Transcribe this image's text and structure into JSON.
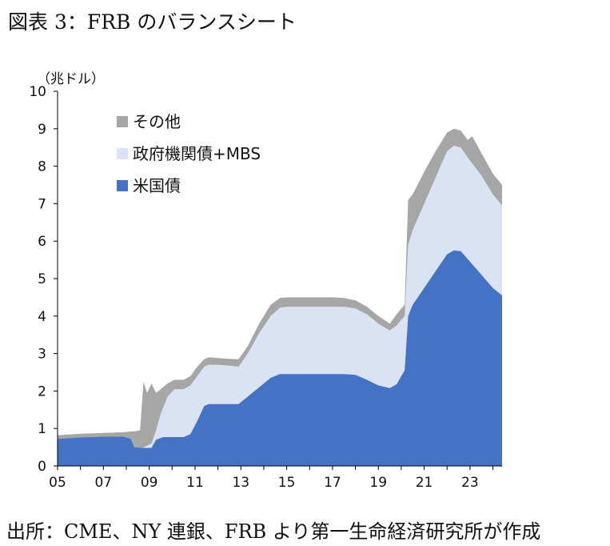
{
  "title": "図表 3：FRB のバランスシート",
  "source": "出所：CME、NY 連銀、FRB より第一生命経済研究所が作成",
  "chart_data": {
    "type": "area",
    "stacked": true,
    "unit_label": "（兆ドル）",
    "ylim": [
      0,
      10
    ],
    "yticks": [
      "0",
      "1",
      "2",
      "3",
      "4",
      "5",
      "6",
      "7",
      "8",
      "9",
      "10"
    ],
    "xlim": [
      2005,
      2024.4
    ],
    "xtick_labels": [
      "05",
      "07",
      "09",
      "11",
      "13",
      "15",
      "17",
      "19",
      "21",
      "23"
    ],
    "xtick_values": [
      2005,
      2007,
      2009,
      2011,
      2013,
      2015,
      2017,
      2019,
      2021,
      2023
    ],
    "legend_position": "top-left",
    "series": [
      {
        "name": "米国債",
        "color": "#4472c4",
        "points": [
          [
            2005.0,
            0.72
          ],
          [
            2006.0,
            0.76
          ],
          [
            2007.0,
            0.78
          ],
          [
            2007.9,
            0.78
          ],
          [
            2008.2,
            0.72
          ],
          [
            2008.35,
            0.5
          ],
          [
            2008.7,
            0.48
          ],
          [
            2009.1,
            0.48
          ],
          [
            2009.3,
            0.7
          ],
          [
            2009.6,
            0.77
          ],
          [
            2010.0,
            0.77
          ],
          [
            2010.5,
            0.77
          ],
          [
            2010.8,
            0.85
          ],
          [
            2011.1,
            1.2
          ],
          [
            2011.4,
            1.6
          ],
          [
            2011.6,
            1.65
          ],
          [
            2012.0,
            1.65
          ],
          [
            2012.5,
            1.65
          ],
          [
            2012.9,
            1.65
          ],
          [
            2013.3,
            1.85
          ],
          [
            2013.8,
            2.1
          ],
          [
            2014.3,
            2.35
          ],
          [
            2014.7,
            2.45
          ],
          [
            2015.0,
            2.45
          ],
          [
            2016.0,
            2.45
          ],
          [
            2017.0,
            2.45
          ],
          [
            2017.5,
            2.45
          ],
          [
            2018.0,
            2.43
          ],
          [
            2018.5,
            2.3
          ],
          [
            2019.0,
            2.15
          ],
          [
            2019.5,
            2.08
          ],
          [
            2019.8,
            2.18
          ],
          [
            2020.0,
            2.4
          ],
          [
            2020.15,
            2.55
          ],
          [
            2020.3,
            4.0
          ],
          [
            2020.5,
            4.3
          ],
          [
            2021.0,
            4.75
          ],
          [
            2021.5,
            5.2
          ],
          [
            2022.0,
            5.65
          ],
          [
            2022.3,
            5.75
          ],
          [
            2022.6,
            5.73
          ],
          [
            2023.0,
            5.45
          ],
          [
            2023.5,
            5.1
          ],
          [
            2024.0,
            4.75
          ],
          [
            2024.4,
            4.55
          ]
        ]
      },
      {
        "name": "政府機関債+MBS",
        "color": "#dae3f3",
        "points": [
          [
            2005.0,
            0.72
          ],
          [
            2006.0,
            0.76
          ],
          [
            2007.0,
            0.78
          ],
          [
            2007.9,
            0.78
          ],
          [
            2008.2,
            0.72
          ],
          [
            2008.35,
            0.5
          ],
          [
            2008.7,
            0.48
          ],
          [
            2009.1,
            0.6
          ],
          [
            2009.3,
            0.95
          ],
          [
            2009.5,
            1.4
          ],
          [
            2009.8,
            1.85
          ],
          [
            2010.1,
            2.05
          ],
          [
            2010.5,
            2.05
          ],
          [
            2010.8,
            2.15
          ],
          [
            2011.1,
            2.4
          ],
          [
            2011.4,
            2.65
          ],
          [
            2011.6,
            2.7
          ],
          [
            2012.0,
            2.7
          ],
          [
            2012.5,
            2.68
          ],
          [
            2012.9,
            2.65
          ],
          [
            2013.3,
            3.0
          ],
          [
            2013.8,
            3.55
          ],
          [
            2014.3,
            4.0
          ],
          [
            2014.7,
            4.22
          ],
          [
            2015.0,
            4.25
          ],
          [
            2016.0,
            4.25
          ],
          [
            2017.0,
            4.25
          ],
          [
            2017.5,
            4.25
          ],
          [
            2018.0,
            4.2
          ],
          [
            2018.5,
            4.05
          ],
          [
            2019.0,
            3.8
          ],
          [
            2019.5,
            3.62
          ],
          [
            2019.8,
            3.75
          ],
          [
            2020.0,
            3.9
          ],
          [
            2020.15,
            4.0
          ],
          [
            2020.3,
            5.9
          ],
          [
            2020.5,
            6.3
          ],
          [
            2021.0,
            7.0
          ],
          [
            2021.5,
            7.7
          ],
          [
            2022.0,
            8.4
          ],
          [
            2022.3,
            8.55
          ],
          [
            2022.6,
            8.5
          ],
          [
            2023.0,
            8.15
          ],
          [
            2023.5,
            7.75
          ],
          [
            2024.0,
            7.25
          ],
          [
            2024.4,
            6.95
          ]
        ]
      },
      {
        "name": "その他",
        "color": "#a6a6a6",
        "points": [
          [
            2005.0,
            0.82
          ],
          [
            2006.0,
            0.86
          ],
          [
            2007.0,
            0.88
          ],
          [
            2007.9,
            0.9
          ],
          [
            2008.2,
            0.92
          ],
          [
            2008.35,
            0.92
          ],
          [
            2008.6,
            0.95
          ],
          [
            2008.75,
            2.25
          ],
          [
            2008.9,
            1.95
          ],
          [
            2009.1,
            2.2
          ],
          [
            2009.3,
            1.95
          ],
          [
            2009.5,
            2.05
          ],
          [
            2009.8,
            2.2
          ],
          [
            2010.1,
            2.3
          ],
          [
            2010.5,
            2.3
          ],
          [
            2010.8,
            2.4
          ],
          [
            2011.1,
            2.65
          ],
          [
            2011.4,
            2.85
          ],
          [
            2011.6,
            2.9
          ],
          [
            2012.0,
            2.88
          ],
          [
            2012.5,
            2.86
          ],
          [
            2012.9,
            2.85
          ],
          [
            2013.3,
            3.2
          ],
          [
            2013.8,
            3.8
          ],
          [
            2014.3,
            4.3
          ],
          [
            2014.7,
            4.48
          ],
          [
            2015.0,
            4.5
          ],
          [
            2016.0,
            4.5
          ],
          [
            2017.0,
            4.5
          ],
          [
            2017.5,
            4.48
          ],
          [
            2018.0,
            4.42
          ],
          [
            2018.5,
            4.25
          ],
          [
            2019.0,
            4.0
          ],
          [
            2019.5,
            3.8
          ],
          [
            2019.8,
            4.05
          ],
          [
            2020.0,
            4.2
          ],
          [
            2020.15,
            4.3
          ],
          [
            2020.3,
            7.1
          ],
          [
            2020.5,
            7.25
          ],
          [
            2021.0,
            7.85
          ],
          [
            2021.5,
            8.4
          ],
          [
            2022.0,
            8.9
          ],
          [
            2022.3,
            9.0
          ],
          [
            2022.6,
            8.95
          ],
          [
            2022.9,
            8.7
          ],
          [
            2023.1,
            8.8
          ],
          [
            2023.5,
            8.35
          ],
          [
            2024.0,
            7.8
          ],
          [
            2024.4,
            7.5
          ]
        ]
      }
    ]
  }
}
